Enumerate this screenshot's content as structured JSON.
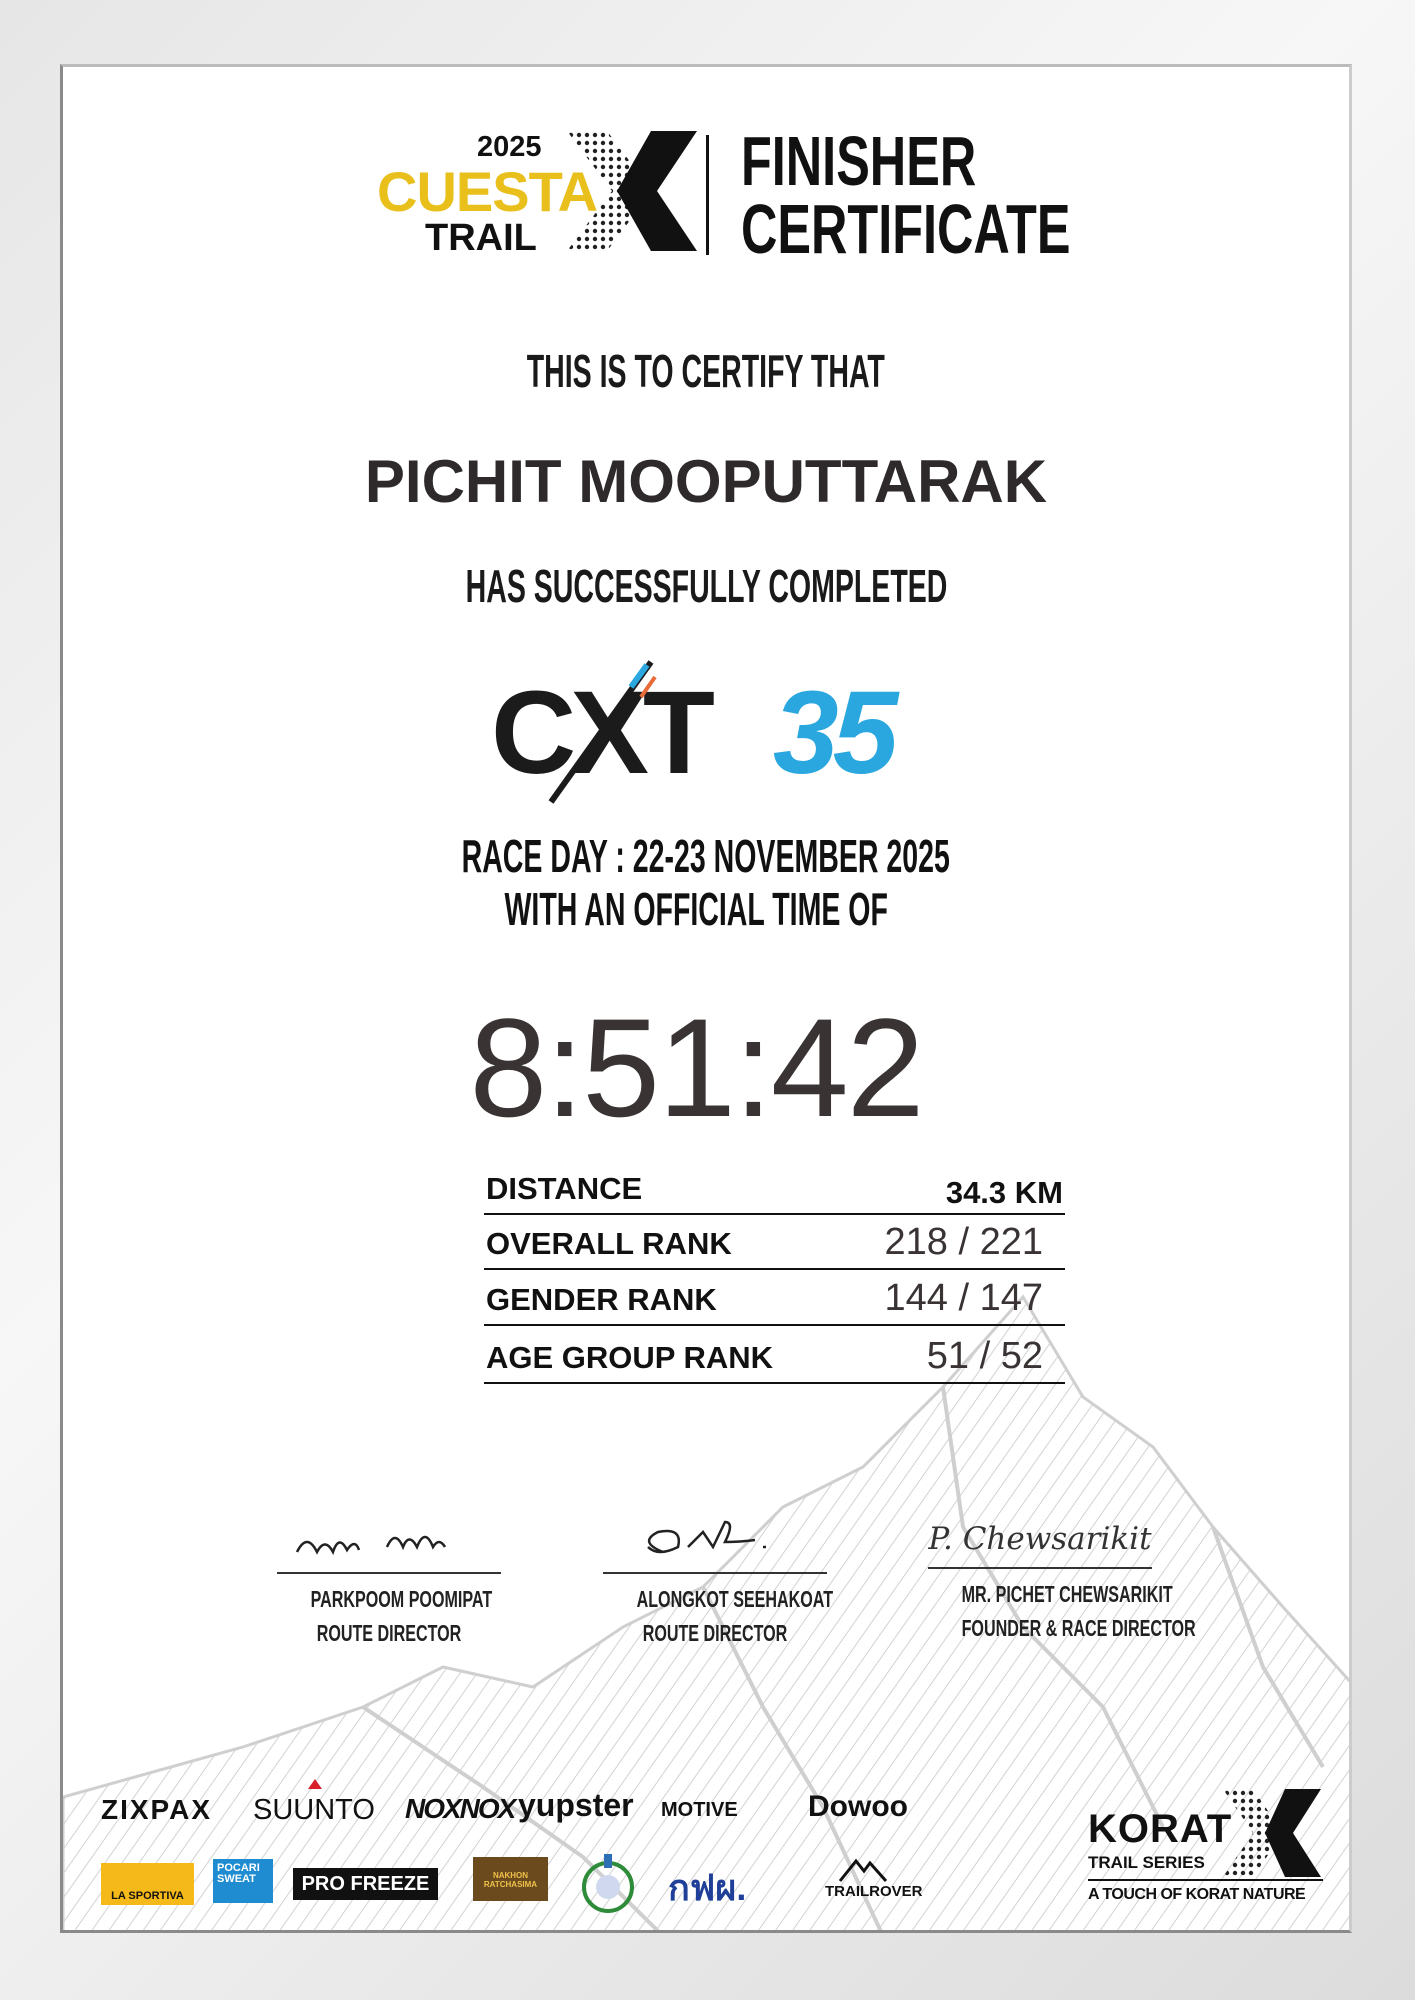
{
  "header": {
    "logo_year": "2025",
    "logo_word1": "CUESTA",
    "logo_word2": "TRAIL",
    "title_line1": "FINISHER",
    "title_line2": "CERTIFICATE"
  },
  "body": {
    "certify": "THIS IS TO CERTIFY THAT",
    "name": "PICHIT MOOPUTTARAK",
    "completed": "HAS SUCCESSFULLY COMPLETED",
    "race_logo": {
      "letters": "CXT",
      "distance": "35"
    },
    "race_day": "RACE DAY : 22-23 NOVEMBER 2025",
    "official_time_label": "WITH AN OFFICIAL TIME OF",
    "time": "8:51:42"
  },
  "results": [
    {
      "label": "DISTANCE",
      "value": "34.3 KM"
    },
    {
      "label": "OVERALL RANK",
      "value": "218 / 221"
    },
    {
      "label": "GENDER RANK",
      "value": "144 / 147"
    },
    {
      "label": "AGE GROUP RANK",
      "value": "51 / 52"
    }
  ],
  "signatures": [
    {
      "name": "PARKPOOM POOMIPAT",
      "role": "ROUTE DIRECTOR"
    },
    {
      "name": "ALONGKOT SEEHAKOAT",
      "role": "ROUTE DIRECTOR"
    },
    {
      "name": "MR. PICHET CHEWSARIKIT",
      "role": "FOUNDER & RACE DIRECTOR",
      "signature_text": "P. Chewsarikit"
    }
  ],
  "sponsors": {
    "row1": [
      "ZIXPAX",
      "SUUNTO",
      "NOXNOX",
      "yupster",
      "MOTIVE",
      "Dowoo"
    ],
    "row2": [
      "LA SPORTIVA",
      "POCARI SWEAT",
      "PRO FREEZE",
      "NAKHON RATCHASIMA",
      "กฟผ.",
      "TRAILROVER"
    ]
  },
  "korat_logo": {
    "name": "KORAT",
    "series": "TRAIL SERIES",
    "tagline": "A TOUCH OF KORAT NATURE"
  },
  "colors": {
    "yellow": "#e9bf1c",
    "blue": "#2aa7df",
    "text": "#111111",
    "time": "#3a3334"
  }
}
